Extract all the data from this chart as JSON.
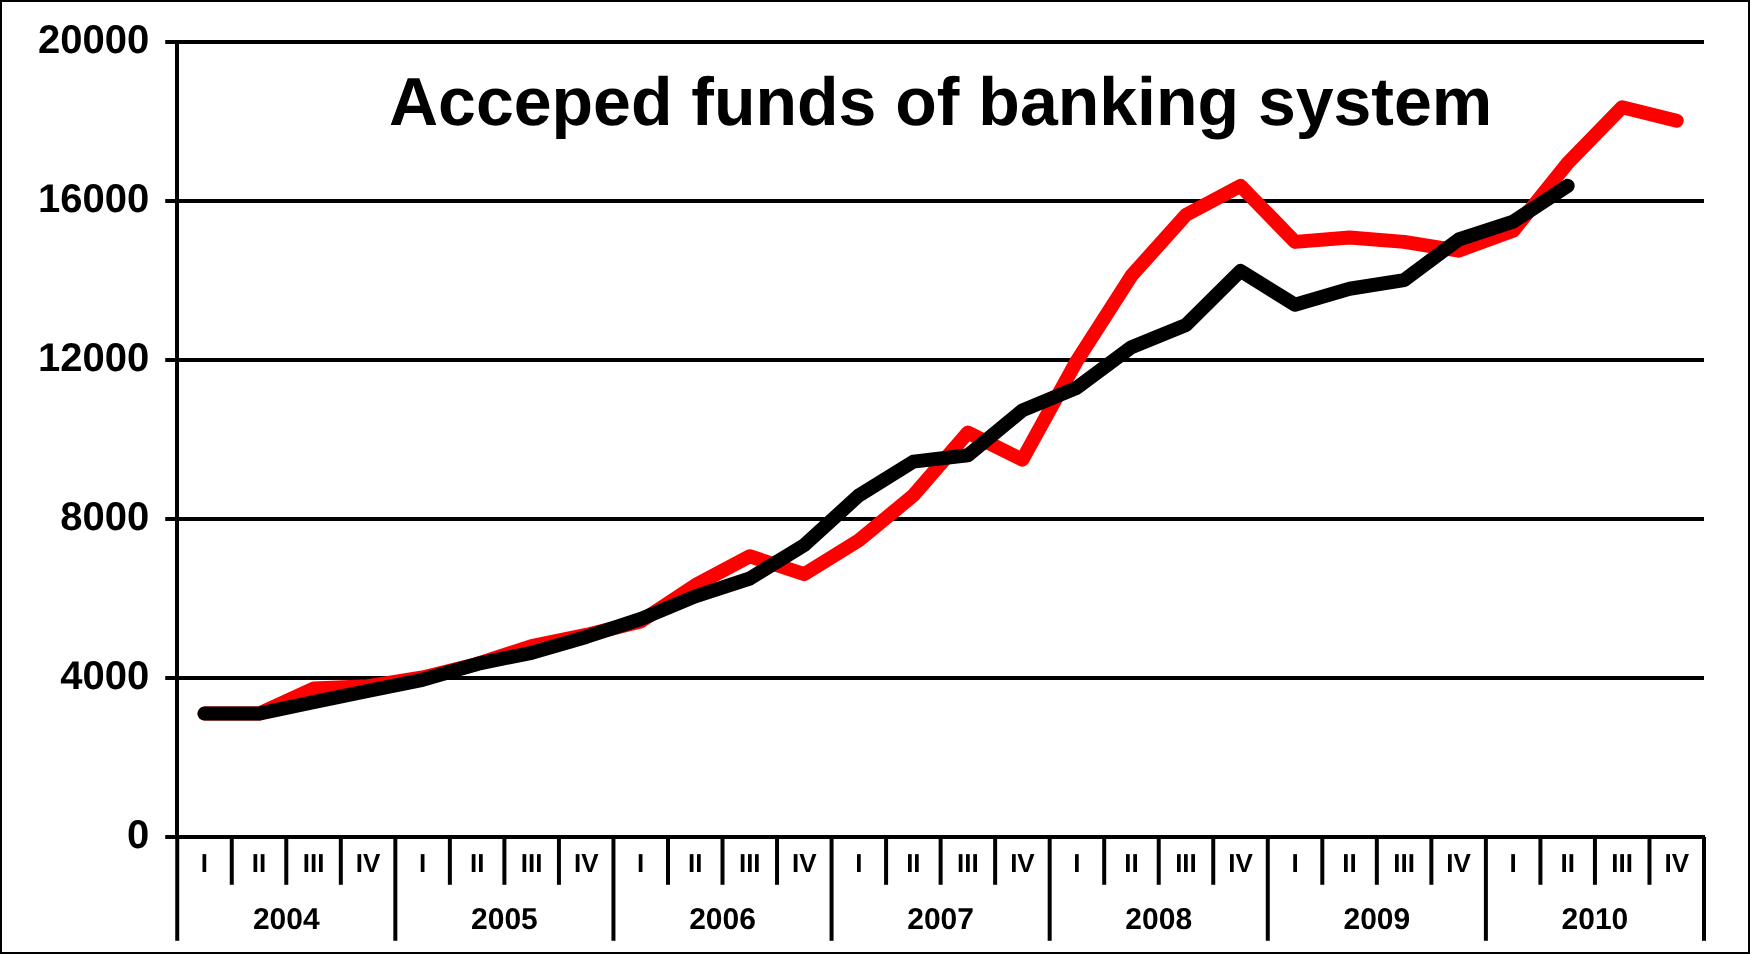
{
  "chart_data": {
    "type": "line",
    "title": "Acceped funds of banking system",
    "categories": [
      "I",
      "II",
      "III",
      "IV",
      "I",
      "II",
      "III",
      "IV",
      "I",
      "II",
      "III",
      "IV",
      "I",
      "II",
      "III",
      "IV",
      "I",
      "II",
      "III",
      "IV",
      "I",
      "II",
      "III",
      "IV",
      "I",
      "II",
      "III",
      "IV"
    ],
    "series": [
      {
        "color": "#000000",
        "values": [
          3100,
          3100,
          3390,
          3670,
          3950,
          4350,
          4630,
          5030,
          5480,
          6050,
          6500,
          7340,
          8590,
          9440,
          9600,
          10730,
          11300,
          12320,
          12880,
          14240,
          13390,
          13790,
          14010,
          15030,
          15480,
          16380,
          null,
          null
        ]
      },
      {
        "color": "#ff0000",
        "values": [
          3100,
          3100,
          3730,
          3790,
          4010,
          4350,
          4800,
          5080,
          5420,
          6330,
          7060,
          6610,
          7460,
          8590,
          10170,
          9490,
          11980,
          14120,
          15650,
          16380,
          14970,
          15080,
          14970,
          14750,
          15250,
          16950,
          18360,
          18020
        ]
      }
    ],
    "annotations": [
      "2004",
      "2005",
      "2006",
      "2007",
      "2008",
      "2009",
      "2010"
    ],
    "ylim": [
      0,
      20000
    ],
    "yticks": [
      0,
      4000,
      8000,
      12000,
      16000,
      20000
    ],
    "grid": "y",
    "legend": false,
    "marker": "none",
    "line_style": "solid"
  }
}
